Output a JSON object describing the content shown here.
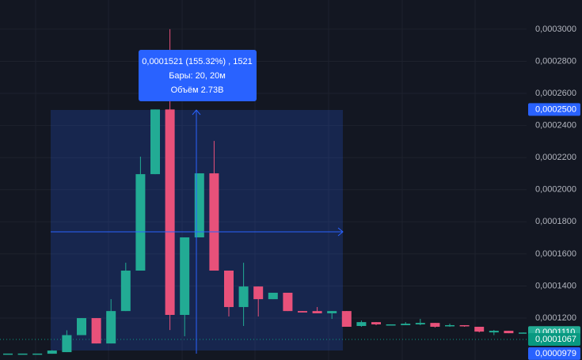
{
  "chart_data": {
    "type": "candlestick",
    "ylim": [
      9.39e-05,
      0.0003182
    ],
    "yticks": [
      {
        "value": 0.00012,
        "label": "0,0001200"
      },
      {
        "value": 0.00014,
        "label": "0,0001400"
      },
      {
        "value": 0.00016,
        "label": "0,0001600"
      },
      {
        "value": 0.00018,
        "label": "0,0001800"
      },
      {
        "value": 0.0002,
        "label": "0,0002000"
      },
      {
        "value": 0.00022,
        "label": "0,0002200"
      },
      {
        "value": 0.00024,
        "label": "0,0002400"
      },
      {
        "value": 0.00026,
        "label": "0,0002600"
      },
      {
        "value": 0.00028,
        "label": "0,0002800"
      },
      {
        "value": 0.0003,
        "label": "0,0003000"
      }
    ],
    "grid": true,
    "up_color": "#22ab94",
    "down_color": "#e8517a",
    "open": [
      9.79e-05,
      9.79e-05,
      9.79e-05,
      9.78e-05,
      9.88e-05,
      0.0001094,
      0.00012,
      0.0001042,
      0.0001244,
      0.0001496,
      0.0002097,
      0.00025,
      0.000122,
      0.0001703,
      0.0002102,
      0.0001496,
      0.0001269,
      0.0001397,
      0.0001318,
      0.0001358,
      0.0001244,
      0.0001244,
      0.000123,
      0.0001244,
      0.0001151,
      0.0001175,
      0.0001156,
      0.0001156,
      0.0001161,
      0.000117,
      0.0001151,
      0.0001156,
      0.0001146,
      0.0001111,
      0.0001121,
      0.0001106
    ],
    "high": [
      9.79e-05,
      9.79e-05,
      9.79e-05,
      0.0001,
      0.0001124,
      0.00012,
      0.00012,
      0.0001318,
      0.0001545,
      0.0002206,
      0.00025,
      0.0003,
      0.0001703,
      0.0002102,
      0.0002304,
      0.0001496,
      0.0001545,
      0.0001397,
      0.0001358,
      0.0001358,
      0.0001244,
      0.0001269,
      0.0001244,
      0.0001244,
      0.0001185,
      0.0001175,
      0.0001161,
      0.0001175,
      0.0001195,
      0.000117,
      0.0001165,
      0.0001156,
      0.0001146,
      0.0001126,
      0.0001121,
      0.000111
    ],
    "low": [
      9.79e-05,
      9.79e-05,
      9.79e-05,
      9.78e-05,
      9.88e-05,
      0.0001094,
      0.0001042,
      0.0001042,
      0.0001244,
      0.0001496,
      0.0002097,
      0.0001126,
      0.0001087,
      0.0001703,
      0.0001496,
      0.000121,
      0.0001151,
      0.000121,
      0.0001318,
      0.0001244,
      0.0001235,
      0.000123,
      0.0001195,
      0.0001146,
      0.0001146,
      0.0001156,
      0.0001156,
      0.0001156,
      0.0001156,
      0.0001141,
      0.0001146,
      0.0001146,
      0.0001111,
      0.0001094,
      0.0001106,
      0.0001106
    ],
    "close": [
      9.79e-05,
      9.79e-05,
      9.79e-05,
      9.98e-05,
      0.0001094,
      0.00012,
      0.0001042,
      0.0001244,
      0.0001496,
      0.0002097,
      0.00025,
      0.000122,
      0.0001703,
      0.0002102,
      0.0001496,
      0.0001269,
      0.0001397,
      0.0001318,
      0.0001358,
      0.0001244,
      0.0001235,
      0.000123,
      0.0001244,
      0.0001146,
      0.0001175,
      0.0001161,
      0.0001161,
      0.0001165,
      0.000117,
      0.0001146,
      0.0001156,
      0.0001151,
      0.0001116,
      0.0001121,
      0.0001106,
      0.000111
    ],
    "price_labels": [
      {
        "value": 0.00025,
        "label": "0,0002500",
        "color": "#2962ff"
      },
      {
        "value": 0.000111,
        "label": "0,0001110",
        "color": "#22ab94"
      },
      {
        "value": 0.0001067,
        "label": "0,0001067",
        "color": "#089981",
        "dotted_line": true
      },
      {
        "value": 9.79e-05,
        "label": "0,0000979",
        "color": "#2962ff"
      }
    ],
    "tooltip": [
      "0,0001521 (155.32%) , 1521",
      "Бары: 20, 20м",
      "Объём 2.73B"
    ]
  }
}
